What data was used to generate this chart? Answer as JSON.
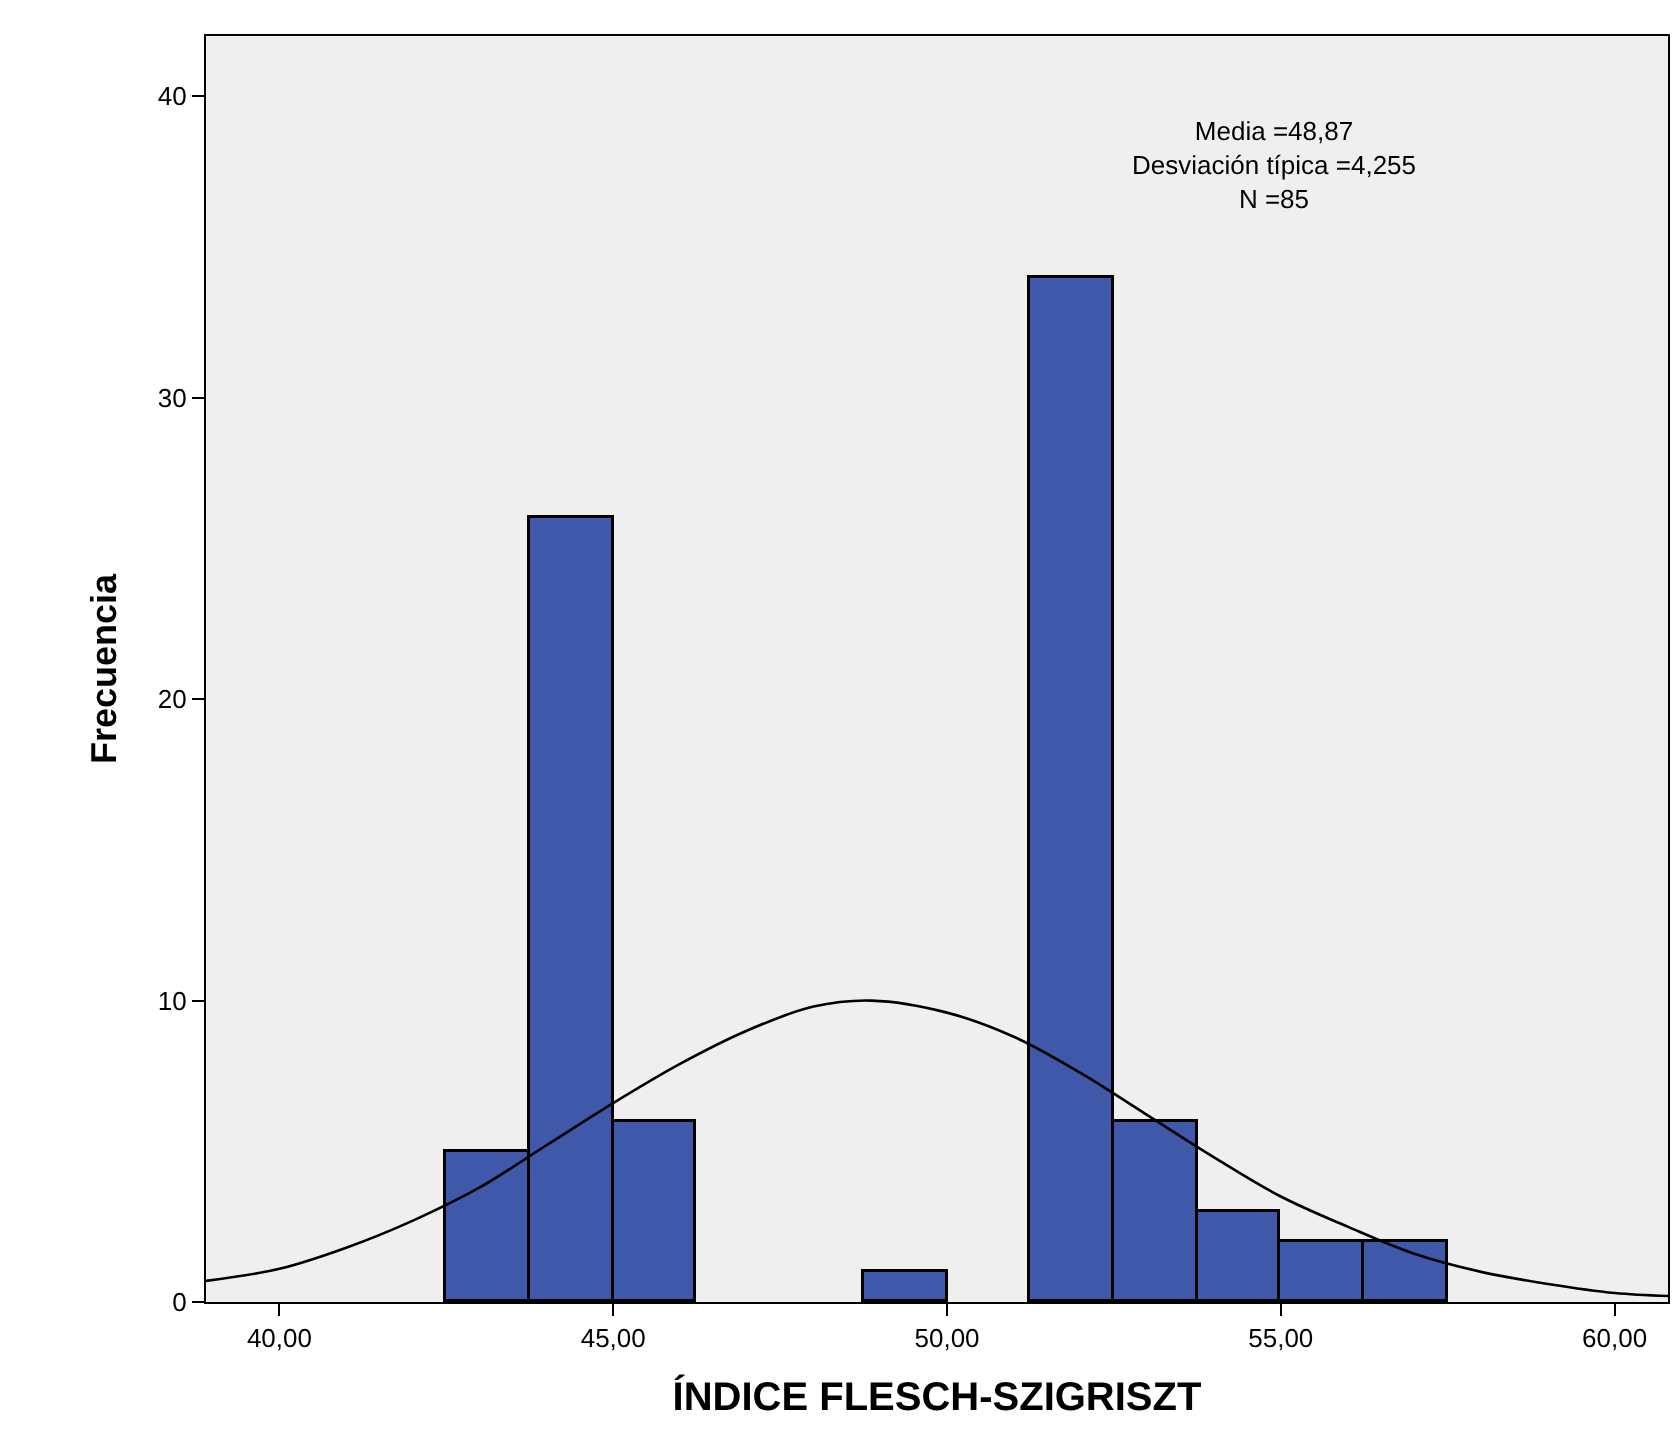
{
  "chart_data": {
    "type": "histogram",
    "xlabel": "ÍNDICE FLESCH-SZIGRISZT",
    "ylabel": "Frecuencia",
    "annotations": [
      "Media =48,87\nDesviación típica =4,255\nN =85"
    ],
    "bins": [
      42.5,
      43.75,
      45.0,
      46.25,
      47.5,
      48.75,
      50.0,
      51.25,
      52.5,
      53.75,
      55.0,
      56.25,
      57.5
    ],
    "values": [
      5,
      26,
      6,
      0,
      0,
      1,
      0,
      34,
      6,
      3,
      2,
      2
    ],
    "color": "#3f58aa",
    "series": [
      {
        "type": "line",
        "color": "#000000",
        "x": [
          38.9,
          40,
          41,
          42,
          43,
          44,
          45,
          46,
          47,
          48,
          48.87,
          50,
          51,
          52,
          53,
          54,
          55,
          56,
          57,
          58,
          59,
          60,
          60.8
        ],
        "values": [
          0.7,
          1.1,
          1.8,
          2.7,
          3.8,
          5.2,
          6.6,
          7.9,
          9.0,
          9.8,
          10.0,
          9.6,
          8.8,
          7.6,
          6.2,
          4.8,
          3.5,
          2.5,
          1.6,
          1.0,
          0.6,
          0.3,
          0.2
        ]
      }
    ],
    "xlim": [
      38.9,
      60.8
    ],
    "ylim": [
      0,
      42
    ],
    "xticks": [
      {
        "value": 40,
        "label": "40,00"
      },
      {
        "value": 45,
        "label": "45,00"
      },
      {
        "value": 50,
        "label": "50,00"
      },
      {
        "value": 55,
        "label": "55,00"
      },
      {
        "value": 60,
        "label": "60,00"
      }
    ],
    "yticks": [
      0,
      10,
      20,
      30,
      40
    ]
  }
}
